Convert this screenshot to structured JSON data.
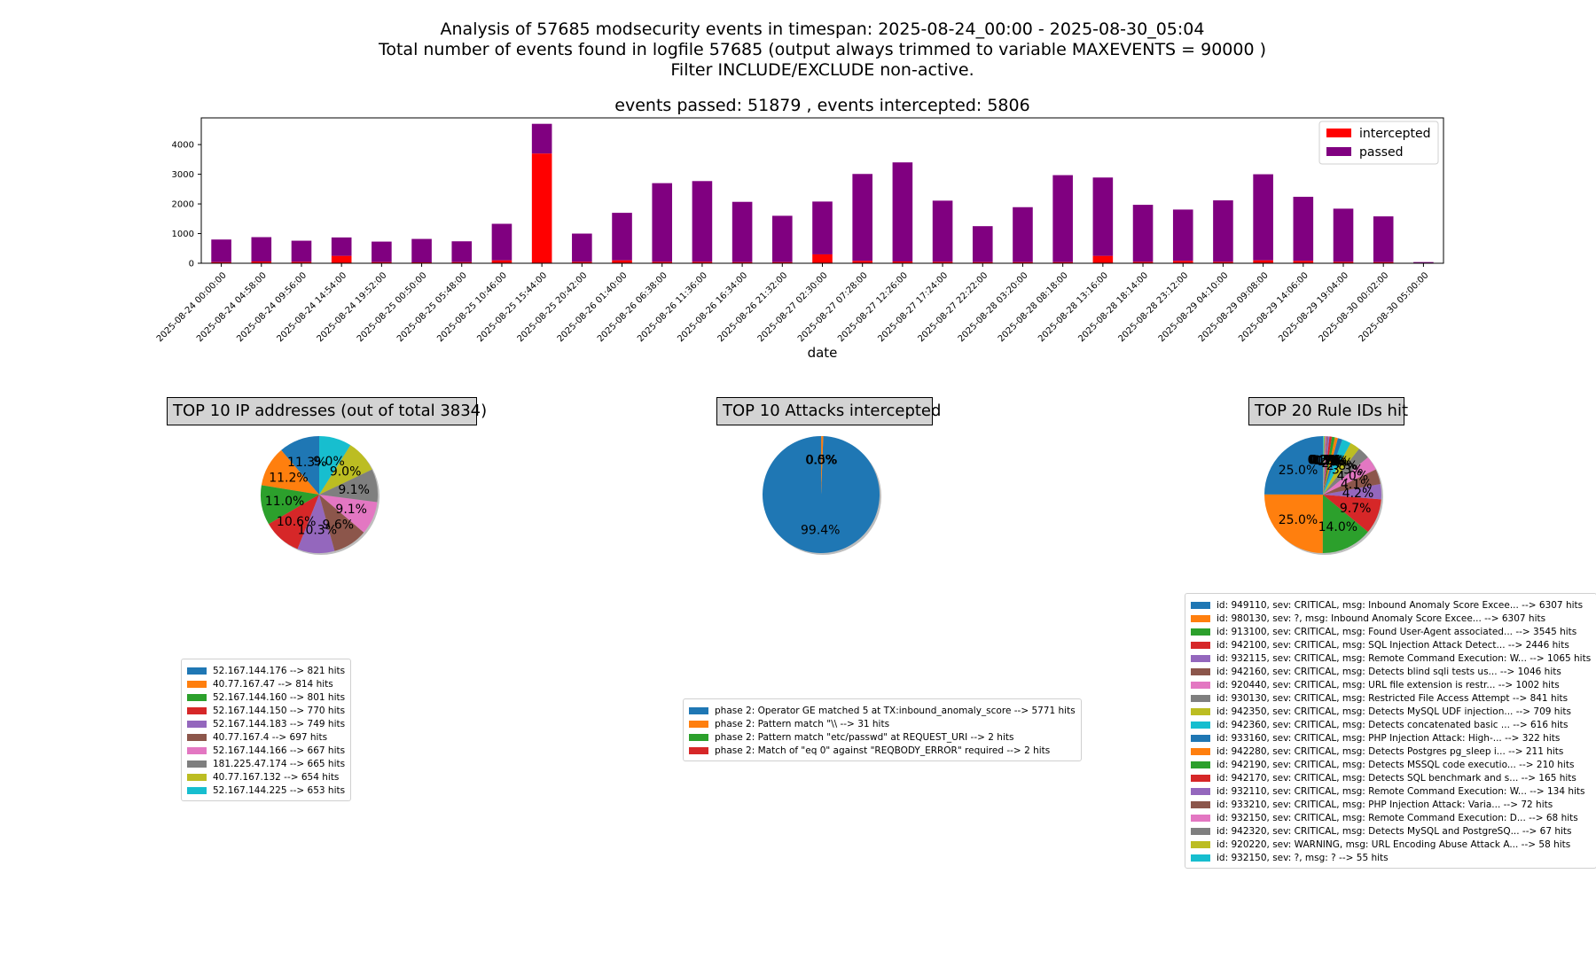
{
  "header": {
    "line1": "Analysis of 57685 modsecurity events in timespan: 2025-08-24_00:00 - 2025-08-30_05:04",
    "line2": "Total number of events found in logfile 57685 (output always trimmed to variable MAXEVENTS = 90000 )",
    "line3": "Filter INCLUDE/EXCLUDE non-active.",
    "subtitle": "events passed: 51879 , events intercepted: 5806"
  },
  "chart_data": [
    {
      "type": "bar",
      "stacked": true,
      "title": "events passed: 51879 , events intercepted: 5806",
      "xlabel": "date",
      "ylabel": "",
      "ylim": [
        0,
        4900
      ],
      "yticks": [
        0,
        1000,
        2000,
        3000,
        4000
      ],
      "legend_position": "top-right",
      "categories": [
        "2025-08-24 00:00:00",
        "2025-08-24 04:58:00",
        "2025-08-24 09:56:00",
        "2025-08-24 14:54:00",
        "2025-08-24 19:52:00",
        "2025-08-25 00:50:00",
        "2025-08-25 05:48:00",
        "2025-08-25 10:46:00",
        "2025-08-25 15:44:00",
        "2025-08-25 20:42:00",
        "2025-08-26 01:40:00",
        "2025-08-26 06:38:00",
        "2025-08-26 11:36:00",
        "2025-08-26 16:34:00",
        "2025-08-26 21:32:00",
        "2025-08-27 02:30:00",
        "2025-08-27 07:28:00",
        "2025-08-27 12:26:00",
        "2025-08-27 17:24:00",
        "2025-08-27 22:22:00",
        "2025-08-28 03:20:00",
        "2025-08-28 08:18:00",
        "2025-08-28 13:16:00",
        "2025-08-28 18:14:00",
        "2025-08-28 23:12:00",
        "2025-08-29 04:10:00",
        "2025-08-29 09:08:00",
        "2025-08-29 14:06:00",
        "2025-08-29 19:04:00",
        "2025-08-30 00:02:00",
        "2025-08-30 05:00:00"
      ],
      "series": [
        {
          "name": "intercepted",
          "color": "#ff0000",
          "values": [
            40,
            60,
            50,
            250,
            40,
            30,
            40,
            100,
            3700,
            50,
            100,
            50,
            50,
            40,
            40,
            300,
            80,
            60,
            50,
            40,
            40,
            40,
            250,
            50,
            80,
            50,
            100,
            80,
            50,
            40,
            5
          ]
        },
        {
          "name": "passed",
          "color": "#800080",
          "values": [
            760,
            820,
            710,
            620,
            690,
            790,
            700,
            1230,
            1000,
            950,
            1600,
            2650,
            2720,
            2030,
            1560,
            1780,
            2930,
            3340,
            2060,
            1210,
            1850,
            2930,
            2640,
            1920,
            1730,
            2070,
            2900,
            2160,
            1790,
            1540,
            35
          ]
        }
      ]
    },
    {
      "type": "pie",
      "title": "TOP 10 IP addresses (out of total 3834)",
      "labels": [
        "52.167.144.176 --> 821 hits",
        "40.77.167.47 --> 814 hits",
        "52.167.144.160 --> 801 hits",
        "52.167.144.150 --> 770 hits",
        "52.167.144.183 --> 749 hits",
        "40.77.167.4 --> 697 hits",
        "52.167.144.166 --> 667 hits",
        "181.225.47.174 --> 665 hits",
        "40.77.167.132 --> 654 hits",
        "52.167.144.225 --> 653 hits"
      ],
      "values": [
        821,
        814,
        801,
        770,
        749,
        697,
        667,
        665,
        654,
        653
      ],
      "pct_labels": [
        "11.3%",
        "11.2%",
        "11.0%",
        "10.6%",
        "10.3%",
        "9.6%",
        "9.1%",
        "9.1%",
        "9.0%",
        "9.0%"
      ]
    },
    {
      "type": "pie",
      "title": "TOP 10 Attacks intercepted",
      "labels": [
        "phase 2: Operator GE matched 5 at TX:inbound_anomaly_score --> 5771 hits",
        "phase 2: Pattern match \"\\\\ --> 31 hits",
        "phase 2: Pattern match \"etc/passwd\" at REQUEST_URI --> 2 hits",
        "phase 2: Match of \"eq 0\" against \"REQBODY_ERROR\" required --> 2 hits"
      ],
      "values": [
        5771,
        31,
        2,
        2
      ],
      "pct_labels": [
        "99.4%",
        "0.5%",
        "0.0%",
        "0.0%"
      ]
    },
    {
      "type": "pie",
      "title": "TOP 20 Rule IDs hit",
      "labels": [
        "id: 949110, sev: CRITICAL, msg: Inbound Anomaly Score Excee... --> 6307 hits",
        "id: 980130, sev: ?, msg: Inbound Anomaly Score Excee... --> 6307 hits",
        "id: 913100, sev: CRITICAL, msg: Found User-Agent associated... --> 3545 hits",
        "id: 942100, sev: CRITICAL, msg: SQL Injection Attack Detect... --> 2446 hits",
        "id: 932115, sev: CRITICAL, msg: Remote Command Execution: W... --> 1065 hits",
        "id: 942160, sev: CRITICAL, msg: Detects blind sqli tests us... --> 1046 hits",
        "id: 920440, sev: CRITICAL, msg: URL file extension is restr... --> 1002 hits",
        "id: 930130, sev: CRITICAL, msg: Restricted File Access Attempt --> 841 hits",
        "id: 942350, sev: CRITICAL, msg: Detects MySQL UDF injection... --> 709 hits",
        "id: 942360, sev: CRITICAL, msg: Detects concatenated basic ... --> 616 hits",
        "id: 933160, sev: CRITICAL, msg: PHP Injection Attack: High-... --> 322 hits",
        "id: 942280, sev: CRITICAL, msg: Detects Postgres pg_sleep i... --> 211 hits",
        "id: 942190, sev: CRITICAL, msg: Detects MSSQL code executio... --> 210 hits",
        "id: 942170, sev: CRITICAL, msg: Detects SQL benchmark and s... --> 165 hits",
        "id: 932110, sev: CRITICAL, msg: Remote Command Execution: W... --> 134 hits",
        "id: 933210, sev: CRITICAL, msg: PHP Injection Attack: Varia... --> 72 hits",
        "id: 932150, sev: CRITICAL, msg: Remote Command Execution: D... --> 68 hits",
        "id: 942320, sev: CRITICAL, msg: Detects MySQL and PostgreSQ... --> 67 hits",
        "id: 920220, sev: WARNING, msg: URL Encoding Abuse Attack A... --> 58 hits",
        "id: 932150, sev: ?, msg: ? --> 55 hits"
      ],
      "values": [
        6307,
        6307,
        3545,
        2446,
        1065,
        1046,
        1002,
        841,
        709,
        616,
        322,
        211,
        210,
        165,
        134,
        72,
        68,
        67,
        58,
        55
      ],
      "pct_labels": [
        "25.0%",
        "25.0%",
        "14.0%",
        "9.7%",
        "4.2%",
        "4.1%",
        "4.0%",
        "3.3%",
        "2.8%",
        "2.4%",
        "1.3%",
        "0.8%",
        "0.8%",
        "0.7%",
        "0.5%",
        "0.3%",
        "0.3%",
        "0.3%",
        "0.2%",
        "0.2%"
      ]
    }
  ],
  "palette": [
    "#1f77b4",
    "#ff7f0e",
    "#2ca02c",
    "#d62728",
    "#9467bd",
    "#8c564b",
    "#e377c2",
    "#7f7f7f",
    "#bcbd22",
    "#17becf"
  ]
}
